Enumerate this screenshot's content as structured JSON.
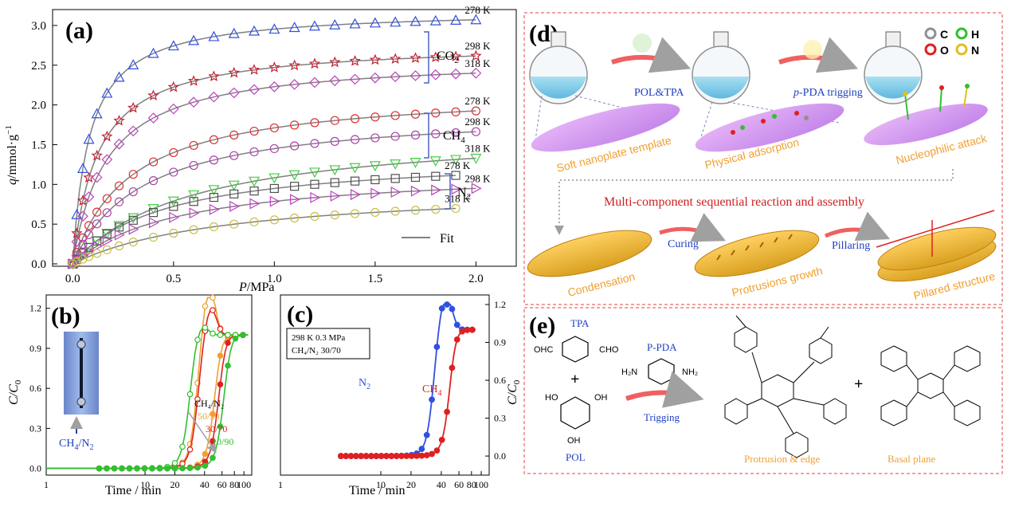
{
  "colors": {
    "blue": "#3050e0",
    "red": "#e02020",
    "orange": "#f0a030",
    "green": "#30c030",
    "magenta": "#c040c0",
    "darkred": "#c02030",
    "gray": "#505050",
    "olive": "#c8c040",
    "fit": "#808080",
    "dashed_border": "#f08080",
    "label_orange": "#f0a030",
    "label_blue": "#2040c0",
    "label_red": "#d02020"
  },
  "chart_data": [
    {
      "id": "a",
      "type": "line",
      "panel_label": "(a)",
      "xlabel_italic": "P",
      "xlabel_rest": "/MPa",
      "ylabel": "q/mmol·g⁻¹",
      "xlim": [
        -0.1,
        2.2
      ],
      "ylim": [
        -0.03,
        3.2
      ],
      "xticks": [
        "0.0",
        "0.5",
        "1.0",
        "1.5",
        "2.0"
      ],
      "yticks": [
        "0.0",
        "0.5",
        "1.0",
        "1.5",
        "2.0",
        "2.5",
        "3.0"
      ],
      "legend_label": "Fit",
      "groups": [
        {
          "gas": "CO",
          "sub": "2"
        },
        {
          "gas": "CH",
          "sub": "4"
        },
        {
          "gas": "N",
          "sub": "2"
        }
      ],
      "series": [
        {
          "name": "CO2 278 K",
          "label": "278 K",
          "marker": "triangle-up",
          "color": "#3050e0",
          "qmax": 3.2,
          "b": 12,
          "pmax": 2.0
        },
        {
          "name": "CO2 298 K",
          "label": "298 K",
          "marker": "star",
          "color": "#c02030",
          "qmax": 2.78,
          "b": 8,
          "pmax": 2.0
        },
        {
          "name": "CO2 318 K",
          "label": "318 K",
          "marker": "diamond",
          "color": "#c040c0",
          "qmax": 2.6,
          "b": 6,
          "pmax": 2.0
        },
        {
          "name": "CH4 278 K",
          "label": "278 K",
          "marker": "circle",
          "color": "#e03030",
          "qmax": 2.2,
          "b": 3.5,
          "pmax": 2.0
        },
        {
          "name": "CH4 298 K",
          "label": "298 K",
          "marker": "circle",
          "color": "#b040b0",
          "qmax": 1.95,
          "b": 2.9,
          "pmax": 2.0
        },
        {
          "name": "CH4 318 K",
          "label": "318 K",
          "marker": "triangle-down",
          "color": "#40d040",
          "qmax": 1.72,
          "b": 1.7,
          "pmax": 2.0
        },
        {
          "name": "N2 278 K",
          "label": "278 K",
          "marker": "square",
          "color": "#505050",
          "qmax": 1.38,
          "b": 2.2,
          "pmax": 1.9
        },
        {
          "name": "N2 298 K",
          "label": "298 K",
          "marker": "triangle-right",
          "color": "#c040c0",
          "qmax": 1.2,
          "b": 1.9,
          "pmax": 2.0
        },
        {
          "name": "N2 318 K",
          "label": "318 K",
          "marker": "circle",
          "color": "#c8c040",
          "qmax": 0.98,
          "b": 1.3,
          "pmax": 1.9
        }
      ]
    },
    {
      "id": "b",
      "type": "line",
      "panel_label": "(b)",
      "xlabel": "Time / min",
      "ylabel_italic": "C/C",
      "ylabel_sub": "0",
      "xlim": [
        1,
        120
      ],
      "ylim": [
        -0.05,
        1.3
      ],
      "xticks": [
        "1",
        "10",
        "20",
        "40",
        "60",
        "80",
        "100"
      ],
      "yticks": [
        "0.0",
        "0.3",
        "0.6",
        "0.9",
        "1.2"
      ],
      "feed_label": "CH",
      "feed_sub1": "4",
      "feed_mid": "/N",
      "feed_sub2": "2",
      "ratio_title": "CH₄/N₂",
      "series": [
        {
          "name": "50/50",
          "color": "#f0a030",
          "t_hollow": 33,
          "t_solid": 50,
          "peak": 1.27
        },
        {
          "name": "30/70",
          "color": "#e02020",
          "t_hollow": 34,
          "t_solid": 55,
          "peak": 1.15
        },
        {
          "name": "10/90",
          "color": "#30c030",
          "t_hollow": 28,
          "t_solid": 62,
          "peak": 1.05
        }
      ]
    },
    {
      "id": "c",
      "type": "line",
      "panel_label": "(c)",
      "xlabel": "Time / min",
      "ylabel_italic": "C/C",
      "ylabel_sub": "0",
      "xlim": [
        1,
        120
      ],
      "ylim": [
        -0.05,
        1.2
      ],
      "xticks": [
        "1",
        "10",
        "20",
        "40",
        "60",
        "80",
        "100"
      ],
      "yticks": [
        "0.0",
        "0.3",
        "0.6",
        "0.9",
        "1.2"
      ],
      "condition_line1": "298 K 0.3 MPa",
      "condition_line2": "CH₄/N₂ 30/70",
      "series": [
        {
          "name": "N",
          "sub": "2",
          "color": "#3050e0",
          "t_mid": 33,
          "peak": 1.2
        },
        {
          "name": "CH",
          "sub": "4",
          "color": "#e02020",
          "t_mid": 48,
          "peak": 1.0
        }
      ]
    }
  ],
  "panel_d": {
    "label": "(d)",
    "legend": [
      {
        "symbol": "C",
        "color": "#909090"
      },
      {
        "symbol": "H",
        "color": "#30c030"
      },
      {
        "symbol": "O",
        "color": "#e02020"
      },
      {
        "symbol": "N",
        "color": "#e0c020"
      }
    ],
    "arrow1_label": "POL&TPA",
    "arrow2_label_italic": "p",
    "arrow2_label_rest": "-PDA trigging",
    "step1": "Soft nanoplate template",
    "step2": "Physical adsorption",
    "step3": "Nucleophilic attack",
    "title": "Multi-component  sequential reaction and assembly",
    "curing": "Curing",
    "pillaring": "Pillaring",
    "step4": "Condensation",
    "step5": "Protrusions growth",
    "step6": "Pillared structure"
  },
  "panel_e": {
    "label": "(e)",
    "tpa": "TPA",
    "ohc_left": "OHC",
    "cho_right": "CHO",
    "plus": "+",
    "pol": "POL",
    "oh": "OH",
    "ho": "HO",
    "ppda": "P-PDA",
    "h2n": "H₂N",
    "nh2": "NH₂",
    "trigging": "Trigging",
    "protrusion": "Protrusion & edge",
    "basal": "Basal plane"
  }
}
